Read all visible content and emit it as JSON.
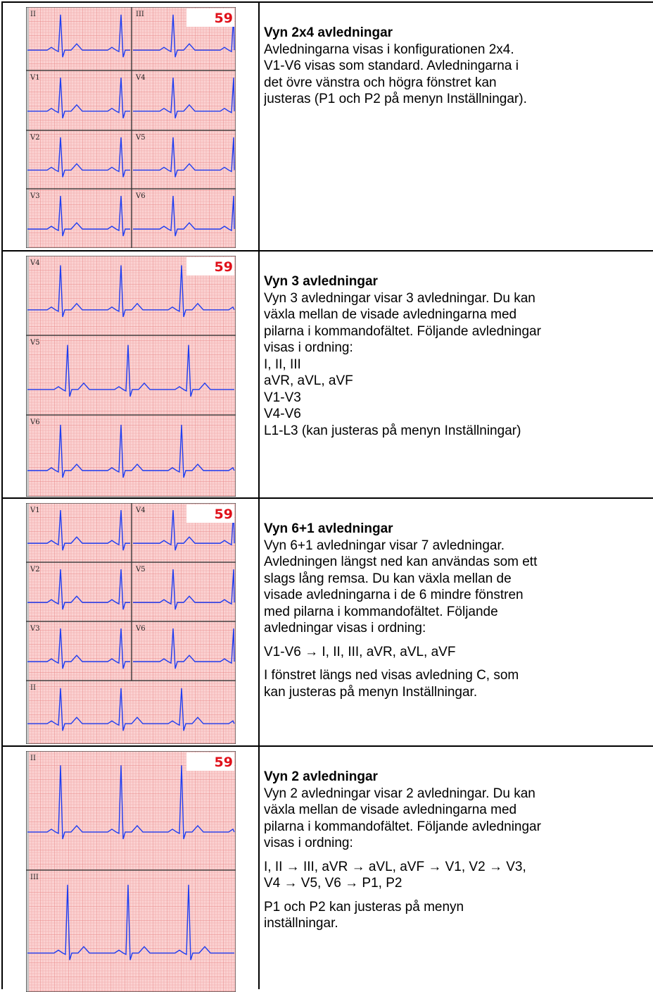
{
  "rows": [
    {
      "ecg": {
        "heart_rate": "59",
        "leads": [
          "II",
          "III",
          "V1",
          "V4",
          "V2",
          "V5",
          "V3",
          "V6"
        ]
      },
      "heading": "Vyn 2x4 avledningar",
      "paragraphs": [
        [
          "Avledningarna visas i konfigurationen 2x4.",
          "V1-V6 visas som standard. Avledningarna i",
          "det övre vänstra och högra fönstret kan",
          "justeras (P1 och P2 på menyn Inställningar)."
        ]
      ]
    },
    {
      "ecg": {
        "heart_rate": "59",
        "leads": [
          "V4",
          "V5",
          "V6"
        ]
      },
      "heading": "Vyn 3 avledningar",
      "paragraphs": [
        [
          "Vyn 3 avledningar visar 3 avledningar. Du kan",
          "växla mellan de visade avledningarna med",
          "pilarna i kommandofältet. Följande avledningar",
          "visas i ordning:",
          "I, II, III",
          "aVR, aVL, aVF",
          "V1-V3",
          "V4-V6",
          "L1-L3 (kan justeras på menyn Inställningar)"
        ]
      ]
    },
    {
      "ecg": {
        "heart_rate": "59",
        "leads": [
          "V1",
          "V4",
          "V2",
          "V5",
          "V3",
          "V6",
          "II"
        ]
      },
      "heading": "Vyn 6+1 avledningar",
      "paragraphs": [
        [
          "Vyn 6+1 avledningar visar 7 avledningar.",
          "Avledningen längst ned kan användas som ett",
          "slags lång remsa. Du kan växla mellan de",
          "visade avledningarna i de 6 mindre fönstren",
          "med pilarna i kommandofältet. Följande",
          "avledningar visas i ordning:"
        ],
        [
          "V1-V6 →  I, II, III, aVR, aVL, aVF"
        ],
        [
          "I fönstret längs ned visas avledning C, som",
          "kan justeras på menyn Inställningar."
        ]
      ]
    },
    {
      "ecg": {
        "heart_rate": "59",
        "leads": [
          "II",
          "III"
        ]
      },
      "heading": "Vyn 2 avledningar",
      "paragraphs": [
        [
          "Vyn 2 avledningar visar 2 avledningar. Du kan",
          "växla mellan de visade avledningarna med",
          "pilarna i kommandofältet. Följande avledningar",
          "visas i ordning:"
        ],
        [
          "I, II →  III, aVR →  aVL, aVF →  V1, V2 →  V3,",
          "V4 →  V5, V6 →  P1, P2"
        ],
        [
          "P1 och P2 kan justeras på menyn",
          "inställningar."
        ]
      ]
    }
  ]
}
